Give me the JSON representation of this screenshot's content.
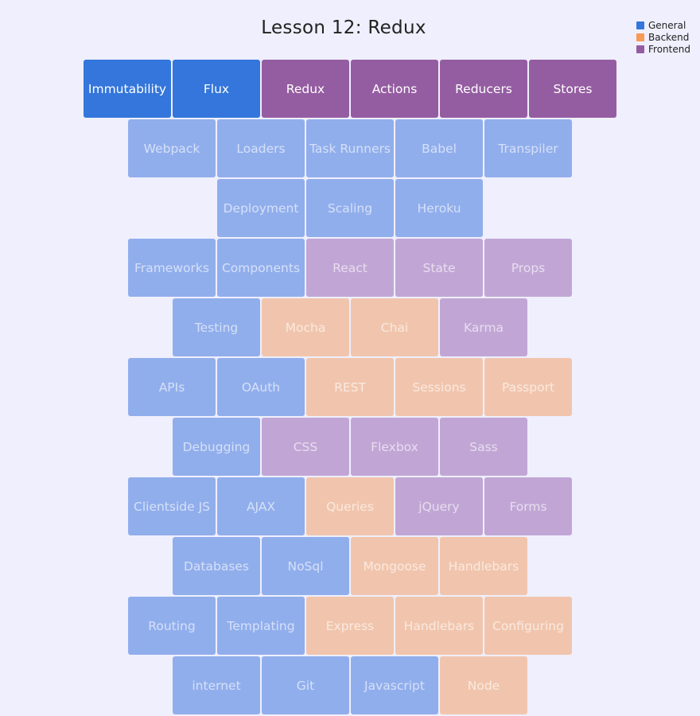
{
  "title": "Lesson 12: Redux",
  "legend": [
    {
      "label": "General",
      "color": "#3476db"
    },
    {
      "label": "Backend",
      "color": "#f79a55"
    },
    {
      "label": "Frontend",
      "color": "#955da1"
    }
  ],
  "rows": [
    [
      {
        "label": "Immutability",
        "category": "general",
        "state": "active"
      },
      {
        "label": "Flux",
        "category": "general",
        "state": "active"
      },
      {
        "label": "Redux",
        "category": "frontend",
        "state": "active"
      },
      {
        "label": "Actions",
        "category": "frontend",
        "state": "active"
      },
      {
        "label": "Reducers",
        "category": "frontend",
        "state": "active"
      },
      {
        "label": "Stores",
        "category": "frontend",
        "state": "active"
      }
    ],
    [
      {
        "label": "Webpack",
        "category": "general",
        "state": "faded"
      },
      {
        "label": "Loaders",
        "category": "general",
        "state": "faded"
      },
      {
        "label": "Task Runners",
        "category": "general",
        "state": "faded"
      },
      {
        "label": "Babel",
        "category": "general",
        "state": "faded"
      },
      {
        "label": "Transpiler",
        "category": "general",
        "state": "faded"
      }
    ],
    [
      {
        "label": "Deployment",
        "category": "general",
        "state": "faded"
      },
      {
        "label": "Scaling",
        "category": "general",
        "state": "faded"
      },
      {
        "label": "Heroku",
        "category": "general",
        "state": "faded"
      }
    ],
    [
      {
        "label": "Frameworks",
        "category": "general",
        "state": "faded"
      },
      {
        "label": "Components",
        "category": "general",
        "state": "faded"
      },
      {
        "label": "React",
        "category": "frontend",
        "state": "faded"
      },
      {
        "label": "State",
        "category": "frontend",
        "state": "faded"
      },
      {
        "label": "Props",
        "category": "frontend",
        "state": "faded"
      }
    ],
    [
      {
        "label": "Testing",
        "category": "general",
        "state": "faded"
      },
      {
        "label": "Mocha",
        "category": "backend",
        "state": "faded"
      },
      {
        "label": "Chai",
        "category": "backend",
        "state": "faded"
      },
      {
        "label": "Karma",
        "category": "frontend",
        "state": "faded"
      }
    ],
    [
      {
        "label": "APIs",
        "category": "general",
        "state": "faded"
      },
      {
        "label": "OAuth",
        "category": "general",
        "state": "faded"
      },
      {
        "label": "REST",
        "category": "backend",
        "state": "faded"
      },
      {
        "label": "Sessions",
        "category": "backend",
        "state": "faded"
      },
      {
        "label": "Passport",
        "category": "backend",
        "state": "faded"
      }
    ],
    [
      {
        "label": "Debugging",
        "category": "general",
        "state": "faded"
      },
      {
        "label": "CSS",
        "category": "frontend",
        "state": "faded"
      },
      {
        "label": "Flexbox",
        "category": "frontend",
        "state": "faded"
      },
      {
        "label": "Sass",
        "category": "frontend",
        "state": "faded"
      }
    ],
    [
      {
        "label": "Clientside JS",
        "category": "general",
        "state": "faded"
      },
      {
        "label": "AJAX",
        "category": "general",
        "state": "faded"
      },
      {
        "label": "Queries",
        "category": "backend",
        "state": "faded"
      },
      {
        "label": "jQuery",
        "category": "frontend",
        "state": "faded"
      },
      {
        "label": "Forms",
        "category": "frontend",
        "state": "faded"
      }
    ],
    [
      {
        "label": "Databases",
        "category": "general",
        "state": "faded"
      },
      {
        "label": "NoSql",
        "category": "general",
        "state": "faded"
      },
      {
        "label": "Mongoose",
        "category": "backend",
        "state": "faded"
      },
      {
        "label": "Handlebars",
        "category": "backend",
        "state": "faded"
      }
    ],
    [
      {
        "label": "Routing",
        "category": "general",
        "state": "faded"
      },
      {
        "label": "Templating",
        "category": "general",
        "state": "faded"
      },
      {
        "label": "Express",
        "category": "backend",
        "state": "faded"
      },
      {
        "label": "Handlebars",
        "category": "backend",
        "state": "faded"
      },
      {
        "label": "Configuring",
        "category": "backend",
        "state": "faded"
      }
    ],
    [
      {
        "label": "internet",
        "category": "general",
        "state": "faded"
      },
      {
        "label": "Git",
        "category": "general",
        "state": "faded"
      },
      {
        "label": "Javascript",
        "category": "general",
        "state": "faded"
      },
      {
        "label": "Node",
        "category": "backend",
        "state": "faded"
      }
    ]
  ]
}
